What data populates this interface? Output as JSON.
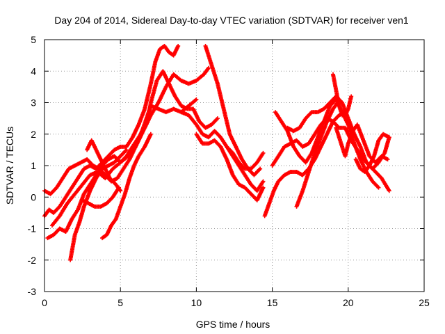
{
  "chart_data": {
    "type": "scatter",
    "title": "Day 204 of 2014, Sidereal Day-to-day VTEC variation (SDTVAR) for receiver ven1",
    "xlabel": "GPS time / hours",
    "ylabel": "SDTVAR / TECUs",
    "xlim": [
      0,
      25
    ],
    "ylim": [
      -3,
      5
    ],
    "xticks": [
      "0",
      "5",
      "10",
      "15",
      "20",
      "25"
    ],
    "yticks": [
      "-3",
      "-2",
      "-1",
      "0",
      "1",
      "2",
      "3",
      "4",
      "5"
    ],
    "grid": true,
    "marker": "+",
    "color": "#ff0000",
    "series": [
      {
        "x": [
          0.0,
          0.3,
          0.6,
          1.0,
          1.4,
          1.8,
          2.2,
          2.6,
          3.0,
          3.4,
          3.8,
          4.2,
          4.6,
          5.0,
          5.4,
          5.8,
          6.2,
          6.6,
          7.0,
          7.3,
          7.6,
          7.9,
          8.2,
          8.5,
          8.8
        ],
        "y": [
          -0.6,
          -0.4,
          -0.5,
          -0.3,
          0.0,
          0.3,
          0.6,
          0.9,
          1.0,
          0.9,
          1.1,
          1.3,
          1.5,
          1.6,
          1.6,
          1.9,
          2.3,
          2.8,
          3.6,
          4.3,
          4.7,
          4.8,
          4.6,
          4.5,
          4.8
        ]
      },
      {
        "x": [
          0.0,
          0.4,
          0.8,
          1.2,
          1.6,
          2.0,
          2.4,
          2.8,
          3.2,
          3.6,
          4.0,
          4.4,
          4.8,
          5.2,
          5.6,
          6.0,
          6.4,
          6.8,
          7.0,
          7.4,
          7.8,
          8.2,
          8.6,
          9.0,
          9.4,
          9.8,
          10.2,
          10.6,
          11.0,
          11.4
        ],
        "y": [
          0.2,
          0.1,
          0.3,
          0.6,
          0.9,
          1.0,
          1.1,
          1.2,
          1.0,
          0.9,
          0.7,
          0.5,
          0.6,
          0.9,
          1.2,
          1.6,
          2.0,
          2.4,
          3.0,
          3.7,
          4.0,
          3.6,
          3.2,
          2.9,
          2.8,
          2.8,
          2.4,
          2.2,
          2.3,
          2.5
        ]
      },
      {
        "x": [
          0.2,
          0.6,
          1.0,
          1.4,
          1.8,
          2.2,
          2.6,
          3.0,
          3.4,
          3.8,
          4.2,
          4.6,
          5.0,
          5.4,
          5.8,
          6.2,
          6.6,
          7.0,
          7.5,
          8.0,
          8.5,
          9.0,
          9.5,
          10.0,
          10.5,
          10.8
        ],
        "y": [
          -1.3,
          -1.2,
          -1.0,
          -1.1,
          -0.7,
          -0.4,
          0.1,
          0.4,
          0.7,
          1.0,
          1.2,
          1.3,
          1.1,
          1.3,
          1.6,
          1.9,
          2.2,
          2.6,
          3.0,
          3.5,
          3.9,
          3.7,
          3.6,
          3.7,
          3.9,
          4.1
        ]
      },
      {
        "x": [
          0.5,
          1.0,
          1.5,
          2.0,
          2.5,
          3.0,
          3.5,
          4.0,
          4.5,
          5.0,
          5.5,
          6.0,
          6.5,
          7.0,
          7.5,
          8.0,
          8.5,
          9.0,
          9.5,
          10.0
        ],
        "y": [
          -0.9,
          -0.6,
          -0.2,
          0.1,
          0.4,
          0.7,
          0.8,
          0.6,
          0.9,
          1.1,
          1.3,
          1.6,
          2.2,
          2.9,
          2.8,
          2.7,
          2.8,
          2.7,
          2.9,
          3.1
        ]
      },
      {
        "x": [
          1.7,
          2.0,
          2.3,
          2.6,
          3.0,
          3.4,
          3.8,
          4.2,
          4.6,
          5.0,
          5.4
        ],
        "y": [
          -2.0,
          -1.2,
          -0.8,
          -0.3,
          0.2,
          0.6,
          0.9,
          1.0,
          1.1,
          1.3,
          1.5
        ]
      },
      {
        "x": [
          2.8,
          3.1,
          3.5,
          3.9,
          4.3,
          4.7,
          5.0
        ],
        "y": [
          1.5,
          1.8,
          1.4,
          1.0,
          0.6,
          0.4,
          0.2
        ]
      },
      {
        "x": [
          2.5,
          2.9,
          3.3,
          3.7,
          4.1,
          4.5,
          4.9
        ],
        "y": [
          -0.1,
          -0.2,
          -0.3,
          -0.3,
          -0.2,
          0.0,
          0.3
        ]
      },
      {
        "x": [
          3.8,
          4.1,
          4.4,
          4.7,
          5.0,
          5.3,
          5.6,
          5.9,
          6.2,
          6.6,
          7.0
        ],
        "y": [
          -1.3,
          -1.2,
          -0.9,
          -0.7,
          -0.3,
          0.1,
          0.6,
          1.0,
          1.3,
          1.6,
          2.0
        ]
      },
      {
        "x": [
          10.6,
          11.0,
          11.4,
          11.8,
          12.2,
          12.6,
          13.0,
          13.4,
          13.8,
          14.2
        ],
        "y": [
          4.8,
          4.2,
          3.6,
          2.8,
          2.0,
          1.6,
          1.2,
          0.9,
          0.7,
          0.9
        ]
      },
      {
        "x": [
          9.0,
          9.5,
          10.0,
          10.4,
          10.8,
          11.2,
          11.6,
          12.0,
          12.4,
          12.8,
          13.2,
          13.6,
          14.0,
          14.4
        ],
        "y": [
          2.7,
          2.6,
          2.3,
          2.0,
          1.9,
          2.1,
          1.9,
          1.6,
          1.3,
          1.0,
          0.7,
          0.4,
          0.2,
          0.5
        ]
      },
      {
        "x": [
          10.0,
          10.4,
          10.8,
          11.2,
          11.6,
          12.0,
          12.4,
          12.8,
          13.2,
          13.6,
          14.0,
          14.4
        ],
        "y": [
          2.0,
          1.7,
          1.7,
          1.8,
          1.6,
          1.2,
          0.7,
          0.4,
          0.3,
          0.1,
          -0.1,
          0.3
        ]
      },
      {
        "x": [
          12.0,
          12.4,
          12.8,
          13.2,
          13.6,
          14.0,
          14.4
        ],
        "y": [
          1.6,
          1.4,
          1.1,
          0.9,
          0.9,
          1.1,
          1.4
        ]
      },
      {
        "x": [
          14.5,
          14.8,
          15.1,
          15.4,
          15.8,
          16.2,
          16.6,
          17.0,
          17.4,
          17.8,
          18.2,
          18.6,
          19.0,
          19.4,
          19.8
        ],
        "y": [
          -0.6,
          -0.2,
          0.2,
          0.5,
          0.7,
          0.8,
          0.8,
          0.7,
          0.9,
          1.2,
          1.6,
          2.0,
          2.4,
          2.6,
          2.7
        ]
      },
      {
        "x": [
          15.2,
          15.6,
          16.0,
          16.4,
          16.8,
          17.2,
          17.6,
          18.0,
          18.4,
          18.8,
          19.2,
          19.6,
          20.0,
          20.4,
          20.8,
          21.2,
          21.6,
          22.0
        ],
        "y": [
          2.7,
          2.4,
          2.1,
          1.6,
          1.3,
          1.1,
          1.4,
          1.9,
          2.4,
          2.9,
          3.1,
          2.7,
          2.3,
          1.7,
          1.2,
          0.8,
          0.5,
          0.3
        ]
      },
      {
        "x": [
          16.0,
          16.4,
          16.8,
          17.2,
          17.6,
          18.0,
          18.4,
          18.8,
          19.2,
          19.6,
          20.0,
          20.4,
          20.8,
          21.2,
          21.6,
          22.0,
          22.4,
          22.7
        ],
        "y": [
          2.2,
          2.1,
          2.2,
          2.5,
          2.7,
          2.7,
          2.8,
          3.0,
          3.2,
          3.0,
          2.5,
          2.0,
          1.6,
          1.1,
          0.9,
          1.1,
          1.4,
          1.9
        ]
      },
      {
        "x": [
          15.0,
          15.4,
          15.8,
          16.2,
          16.6,
          17.0,
          17.4,
          17.8,
          18.2,
          18.6,
          19.0,
          19.4,
          19.8,
          20.2,
          20.6,
          21.0,
          21.4,
          21.8,
          22.2,
          22.7
        ],
        "y": [
          1.0,
          1.3,
          1.6,
          1.7,
          1.8,
          1.6,
          1.7,
          2.0,
          2.3,
          2.5,
          2.4,
          2.2,
          2.2,
          1.8,
          1.5,
          1.2,
          1.0,
          0.8,
          0.6,
          0.2
        ]
      },
      {
        "x": [
          16.6,
          17.0,
          17.4,
          17.8,
          18.2,
          18.6,
          19.0,
          19.3
        ],
        "y": [
          -0.3,
          0.2,
          0.8,
          1.4,
          1.9,
          2.4,
          2.8,
          3.0
        ]
      },
      {
        "x": [
          19.0,
          19.2,
          19.4,
          19.6,
          19.8,
          20.0,
          20.2
        ],
        "y": [
          3.9,
          3.4,
          2.9,
          2.6,
          2.6,
          2.8,
          3.2
        ]
      },
      {
        "x": [
          19.2,
          19.4,
          19.6,
          19.8,
          20.0,
          20.3,
          20.6,
          21.0,
          21.4,
          21.8,
          22.2,
          22.6
        ],
        "y": [
          2.2,
          1.9,
          1.6,
          1.3,
          1.7,
          2.1,
          2.3,
          1.8,
          1.3,
          1.1,
          1.3,
          1.2
        ]
      },
      {
        "x": [
          20.5,
          20.8,
          21.1,
          21.4,
          21.7,
          22.0,
          22.3,
          22.7
        ],
        "y": [
          1.2,
          0.9,
          0.8,
          1.0,
          1.3,
          1.8,
          2.0,
          1.9
        ]
      }
    ]
  }
}
